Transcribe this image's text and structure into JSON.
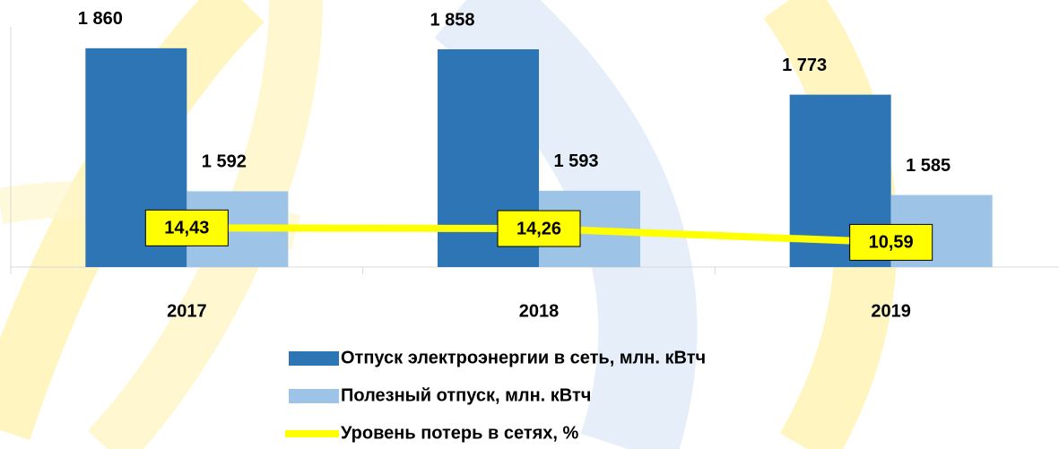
{
  "chart_data": {
    "type": "bar",
    "categories": [
      "2017",
      "2018",
      "2019"
    ],
    "series": [
      {
        "name": "Отпуск электроэнергии в сеть, млн. кВтч",
        "color": "#2e75b6",
        "values": [
          1860,
          1858,
          1773
        ],
        "value_labels": [
          "1 860",
          "1 858",
          "1 773"
        ]
      },
      {
        "name": "Полезный отпуск, млн. кВтч",
        "color": "#9dc3e6",
        "values": [
          1592,
          1593,
          1585
        ],
        "value_labels": [
          "1 592",
          "1 593",
          "1 585"
        ]
      },
      {
        "name": "Уровень потерь в сетях, %",
        "color": "#ffff00",
        "type": "line",
        "axis": "y2",
        "values": [
          14.43,
          14.26,
          10.59
        ],
        "value_labels": [
          "14,43",
          "14,26",
          "10,59"
        ]
      }
    ],
    "ylim": [
      1450,
      1900
    ],
    "y2lim": [
      4,
      68
    ]
  }
}
